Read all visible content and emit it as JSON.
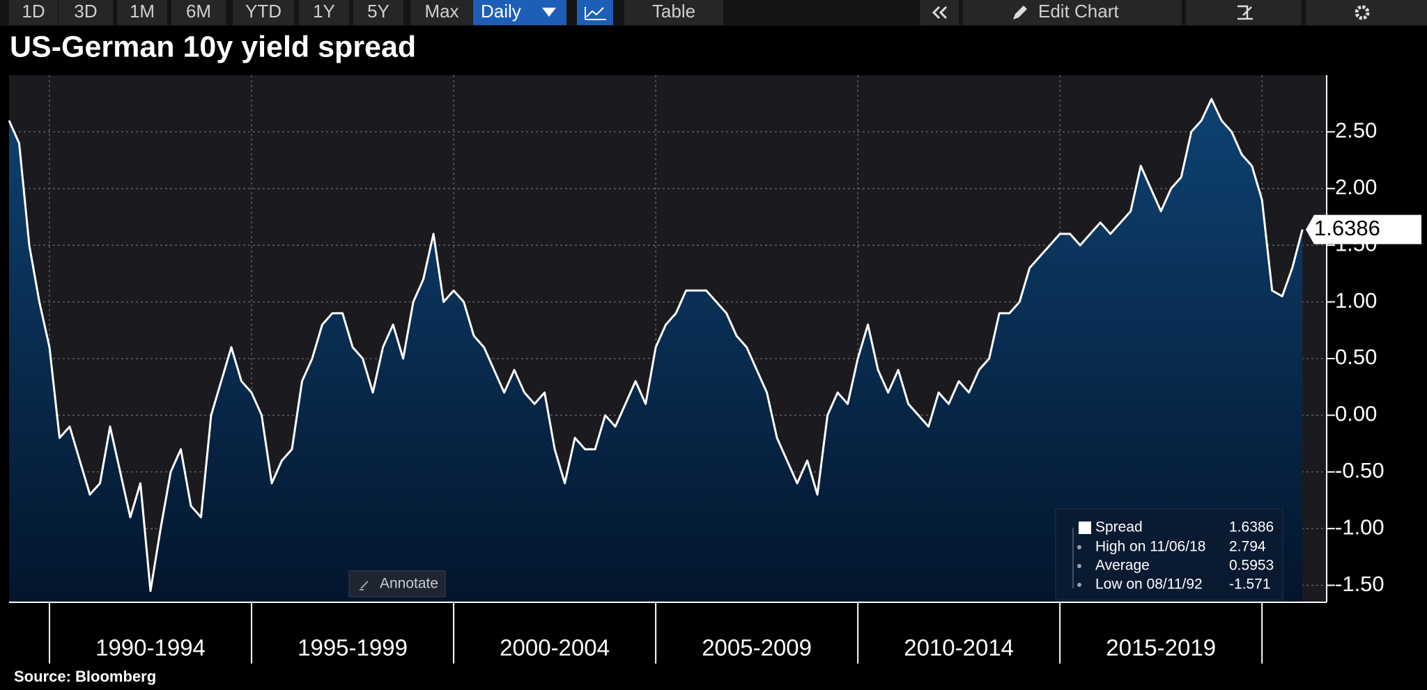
{
  "toolbar": {
    "ranges": [
      "1D",
      "3D",
      "1M",
      "6M",
      "YTD",
      "1Y",
      "5Y",
      "Max"
    ],
    "frequency": "Daily",
    "table": "Table",
    "edit": "Edit Chart"
  },
  "annotate": "Annotate",
  "chart_data": {
    "type": "area",
    "title": "US-German 10y yield spread",
    "source": "Source: Bloomberg",
    "x": [
      1989,
      1989.25,
      1989.5,
      1989.75,
      1990,
      1990.25,
      1990.5,
      1990.75,
      1991,
      1991.25,
      1991.5,
      1991.75,
      1992,
      1992.25,
      1992.5,
      1992.75,
      1993,
      1993.25,
      1993.5,
      1993.75,
      1994,
      1994.25,
      1994.5,
      1994.75,
      1995,
      1995.25,
      1995.5,
      1995.75,
      1996,
      1996.25,
      1996.5,
      1996.75,
      1997,
      1997.25,
      1997.5,
      1997.75,
      1998,
      1998.25,
      1998.5,
      1998.75,
      1999,
      1999.25,
      1999.5,
      1999.75,
      2000,
      2000.25,
      2000.5,
      2000.75,
      2001,
      2001.25,
      2001.5,
      2001.75,
      2002,
      2002.25,
      2002.5,
      2002.75,
      2003,
      2003.25,
      2003.5,
      2003.75,
      2004,
      2004.25,
      2004.5,
      2004.75,
      2005,
      2005.25,
      2005.5,
      2005.75,
      2006,
      2006.25,
      2006.5,
      2006.75,
      2007,
      2007.25,
      2007.5,
      2007.75,
      2008,
      2008.25,
      2008.5,
      2008.75,
      2009,
      2009.25,
      2009.5,
      2009.75,
      2010,
      2010.25,
      2010.5,
      2010.75,
      2011,
      2011.25,
      2011.5,
      2011.75,
      2012,
      2012.25,
      2012.5,
      2012.75,
      2013,
      2013.25,
      2013.5,
      2013.75,
      2014,
      2014.25,
      2014.5,
      2014.75,
      2015,
      2015.25,
      2015.5,
      2015.75,
      2016,
      2016.25,
      2016.5,
      2016.75,
      2017,
      2017.25,
      2017.5,
      2017.75,
      2018,
      2018.25,
      2018.5,
      2018.75,
      2019,
      2019.25,
      2019.5,
      2019.75,
      2020,
      2020.25,
      2020.5,
      2020.75,
      2021
    ],
    "series": [
      {
        "name": "Spread",
        "color": "#ffffff",
        "fill": "#0b3560",
        "values": [
          2.6,
          2.4,
          1.5,
          1.0,
          0.6,
          -0.2,
          -0.1,
          -0.4,
          -0.7,
          -0.6,
          -0.1,
          -0.5,
          -0.9,
          -0.6,
          -1.55,
          -1.0,
          -0.5,
          -0.3,
          -0.8,
          -0.9,
          0.0,
          0.3,
          0.6,
          0.3,
          0.2,
          0.0,
          -0.6,
          -0.4,
          -0.3,
          0.3,
          0.5,
          0.8,
          0.9,
          0.9,
          0.6,
          0.5,
          0.2,
          0.6,
          0.8,
          0.5,
          1.0,
          1.2,
          1.6,
          1.0,
          1.1,
          1.0,
          0.7,
          0.6,
          0.4,
          0.2,
          0.4,
          0.2,
          0.1,
          0.2,
          -0.3,
          -0.6,
          -0.2,
          -0.3,
          -0.3,
          0.0,
          -0.1,
          0.1,
          0.3,
          0.1,
          0.6,
          0.8,
          0.9,
          1.1,
          1.1,
          1.1,
          1.0,
          0.9,
          0.7,
          0.6,
          0.4,
          0.2,
          -0.2,
          -0.4,
          -0.6,
          -0.4,
          -0.7,
          0.0,
          0.2,
          0.1,
          0.5,
          0.8,
          0.4,
          0.2,
          0.4,
          0.1,
          0.0,
          -0.1,
          0.2,
          0.1,
          0.3,
          0.2,
          0.4,
          0.5,
          0.9,
          0.9,
          1.0,
          1.3,
          1.4,
          1.5,
          1.6,
          1.6,
          1.5,
          1.6,
          1.7,
          1.6,
          1.7,
          1.8,
          2.2,
          2.0,
          1.8,
          2.0,
          2.1,
          2.5,
          2.6,
          2.79,
          2.6,
          2.5,
          2.3,
          2.2,
          1.9,
          1.1,
          1.05,
          1.3,
          1.6386
        ]
      }
    ],
    "xlim": [
      1989,
      2021.6
    ],
    "xticks": [
      {
        "value": 1990,
        "label": "1990-1994"
      },
      {
        "value": 1995,
        "label": "1995-1999"
      },
      {
        "value": 2000,
        "label": "2000-2004"
      },
      {
        "value": 2005,
        "label": "2005-2009"
      },
      {
        "value": 2010,
        "label": "2010-2014"
      },
      {
        "value": 2015,
        "label": "2015-2019"
      },
      {
        "value": 2020,
        "label": null
      }
    ],
    "ylim": [
      -1.65,
      3.0
    ],
    "yticks": [
      {
        "value": 2.5,
        "label": "2.50"
      },
      {
        "value": 2.0,
        "label": "2.00"
      },
      {
        "value": 1.5,
        "label": "1.50"
      },
      {
        "value": 1.0,
        "label": "1.00"
      },
      {
        "value": 0.5,
        "label": "0.50"
      },
      {
        "value": 0,
        "label": "0.00"
      },
      {
        "value": -0.5,
        "label": "-0.50"
      },
      {
        "value": -1.0,
        "label": "-1.00"
      },
      {
        "value": -1.5,
        "label": "-1.50"
      }
    ],
    "grid": true,
    "legend": {
      "position": "lower right",
      "items": [
        {
          "label": "Spread",
          "value": 1.6386
        },
        {
          "label": "High on 11/06/18",
          "value": 2.794
        },
        {
          "label": "Average",
          "value": 0.5953
        },
        {
          "label": "Low on 08/11/92",
          "value": -1.571
        }
      ]
    }
  }
}
